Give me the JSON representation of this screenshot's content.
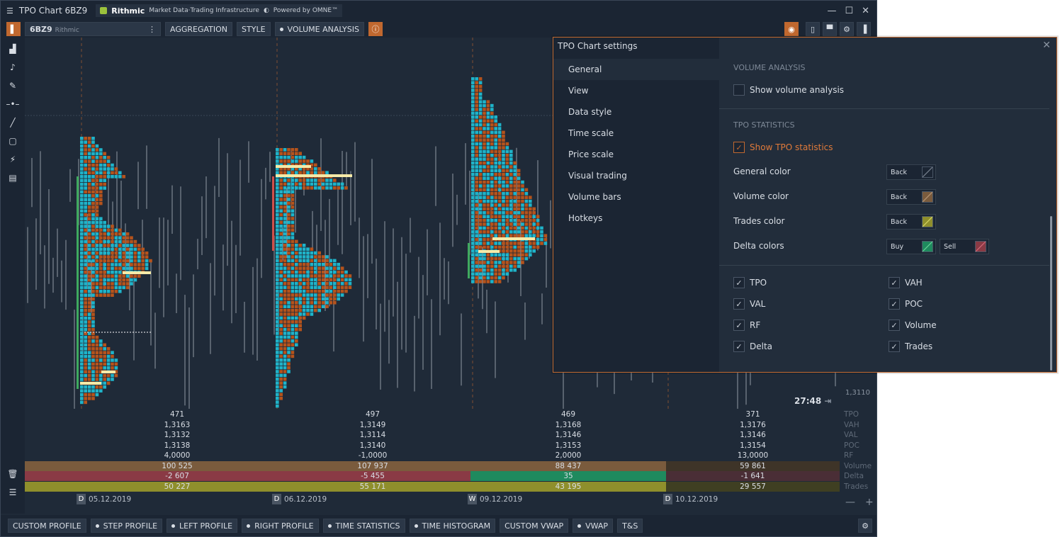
{
  "window": {
    "title": "TPO Chart 6BZ9",
    "brand_name": "Rithmic",
    "brand_tagline": "Market Data·Trading Infrastructure",
    "powered": "Powered by OMNE™"
  },
  "toolbar": {
    "symbol": "6BZ9",
    "provider": "Rithmic",
    "aggregation": "AGGREGATION",
    "style": "STYLE",
    "volume_analysis": "VOLUME ANALYSIS"
  },
  "timer": "27:48",
  "price_axis": [
    "1,3110"
  ],
  "stats": {
    "labels": [
      "TPO",
      "VAH",
      "VAL",
      "POC",
      "RF",
      "Volume",
      "Delta",
      "Trades"
    ],
    "columns": [
      {
        "tpo": "471",
        "vah": "1,3163",
        "val": "1,3132",
        "poc": "1,3138",
        "rf": "4,0000",
        "volume": "100 525",
        "delta": "-2 607",
        "trades": "50 227"
      },
      {
        "tpo": "497",
        "vah": "1,3149",
        "val": "1,3114",
        "poc": "1,3140",
        "rf": "-1,0000",
        "volume": "107 937",
        "delta": "-5 455",
        "trades": "55 171"
      },
      {
        "tpo": "469",
        "vah": "1,3168",
        "val": "1,3146",
        "poc": "1,3153",
        "rf": "2,0000",
        "volume": "88 437",
        "delta": "35",
        "trades": "43 195"
      },
      {
        "tpo": "371",
        "vah": "1,3176",
        "val": "1,3146",
        "poc": "1,3154",
        "rf": "13,0000",
        "volume": "59 861",
        "delta": "-1 641",
        "trades": "29 557"
      }
    ]
  },
  "dates": [
    {
      "tag": "D",
      "label": "05.12.2019"
    },
    {
      "tag": "D",
      "label": "06.12.2019"
    },
    {
      "tag": "W",
      "label": "09.12.2019"
    },
    {
      "tag": "D",
      "label": "10.12.2019"
    }
  ],
  "bottom_tools": [
    "CUSTOM PROFILE",
    "STEP PROFILE",
    "LEFT PROFILE",
    "RIGHT PROFILE",
    "TIME STATISTICS",
    "TIME HISTOGRAM",
    "CUSTOM VWAP",
    "VWAP",
    "T&S"
  ],
  "settings": {
    "title": "TPO Chart settings",
    "nav": [
      "General",
      "View",
      "Data style",
      "Time scale",
      "Price scale",
      "Visual trading",
      "Volume bars",
      "Hotkeys"
    ],
    "volume_section": "VOLUME ANALYSIS",
    "show_volume": "Show volume analysis",
    "tpo_section": "TPO STATISTICS",
    "show_tpo": "Show TPO statistics",
    "general_color": "General color",
    "volume_color": "Volume color",
    "trades_color": "Trades color",
    "delta_colors": "Delta colors",
    "back": "Back",
    "buy": "Buy",
    "sell": "Sell",
    "checks": [
      "TPO",
      "VAH",
      "VAL",
      "POC",
      "RF",
      "Volume",
      "Delta",
      "Trades"
    ]
  },
  "colors": {
    "accent": "#c0682f",
    "cyan": "#1fb3c9",
    "brown": "#b5531c",
    "poc": "#f5eaa8",
    "volume_bg": "#7a5b3d",
    "delta_neg": "#8a3a45",
    "delta_pos": "#1f8a5e",
    "trades_bg": "#8f8f2c"
  }
}
